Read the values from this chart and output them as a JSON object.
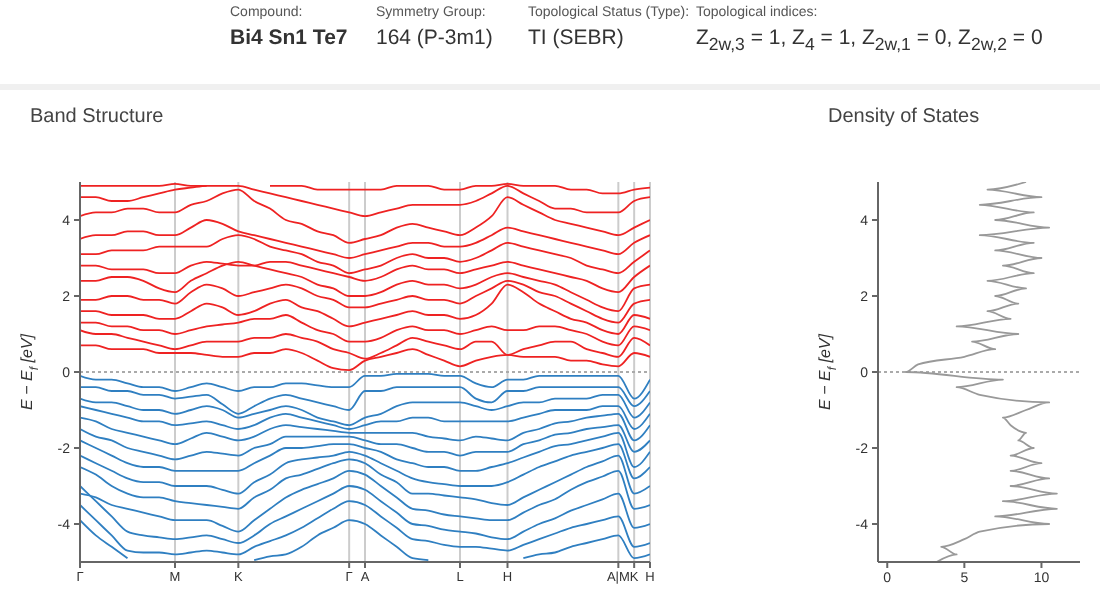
{
  "chart_data": [
    {
      "type": "other",
      "annotations": [
        "Compound:",
        "Bi4 Sn1 Te7",
        "Symmetry Group:",
        "164 (P-3m1)",
        "Topological Status (Type):",
        "TI (SEBR)",
        "Topological indices:",
        "Z$_{2w,3}$ = 1, Z$_{4}$ = 1, Z$_{2w,1}$ = 0, Z$_{2w,2}$ = 0"
      ]
    },
    {
      "type": "line",
      "title": "Band Structure",
      "ylabel": "E − E$_{f}$ [eV]",
      "ylim": [
        -5,
        5
      ],
      "yticks": [
        -4,
        -2,
        0,
        2,
        4
      ],
      "grid": "x",
      "ref_lines": [
        {
          "axis": "y",
          "value": 0,
          "color": "#aaaaaa",
          "line_style": "dotted"
        }
      ],
      "categories": [
        "Γ",
        null,
        null,
        null,
        null,
        null,
        "M",
        null,
        null,
        null,
        "K",
        null,
        null,
        null,
        null,
        null,
        null,
        "Γ",
        "A",
        null,
        null,
        null,
        null,
        null,
        "L",
        null,
        null,
        "H",
        null,
        null,
        null,
        null,
        null,
        null,
        "A|M",
        "K",
        "H"
      ],
      "series": [
        {
          "color": "#ee2222",
          "values": [
            0.7,
            0.7,
            0.6,
            0.6,
            0.6,
            0.5,
            0.5,
            0.5,
            0.45,
            0.4,
            0.4,
            0.5,
            0.5,
            0.6,
            0.5,
            0.3,
            0.1,
            0.05,
            0.3,
            0.4,
            0.5,
            0.6,
            0.45,
            0.3,
            0.15,
            0.3,
            0.4,
            0.45,
            0.4,
            0.4,
            0.4,
            0.3,
            0.3,
            0.2,
            0.15,
            0.5,
            0.4
          ]
        },
        {
          "color": "#ee2222",
          "values": [
            1.1,
            1.0,
            1.0,
            0.9,
            0.8,
            0.7,
            0.6,
            0.7,
            0.8,
            0.8,
            0.8,
            0.9,
            0.9,
            1.0,
            0.9,
            0.8,
            0.6,
            0.5,
            0.35,
            0.5,
            0.7,
            0.9,
            0.8,
            0.7,
            0.6,
            0.8,
            0.8,
            0.45,
            0.6,
            0.7,
            0.8,
            0.8,
            0.6,
            0.5,
            0.4,
            0.9,
            0.7
          ]
        },
        {
          "color": "#ee2222",
          "values": [
            1.3,
            1.3,
            1.2,
            1.2,
            1.1,
            1.1,
            1.0,
            1.1,
            1.2,
            1.25,
            1.3,
            1.4,
            1.4,
            1.5,
            1.3,
            1.1,
            1.0,
            0.8,
            0.8,
            0.9,
            1.1,
            1.2,
            1.1,
            1.1,
            1.0,
            1.1,
            1.2,
            1.1,
            1.1,
            1.2,
            1.2,
            1.1,
            1.0,
            0.8,
            0.7,
            1.2,
            1.1
          ]
        },
        {
          "color": "#ee2222",
          "values": [
            1.6,
            1.6,
            1.5,
            1.5,
            1.5,
            1.4,
            1.4,
            1.6,
            1.8,
            1.7,
            1.5,
            1.6,
            1.8,
            1.9,
            1.7,
            1.6,
            1.4,
            1.2,
            1.3,
            1.4,
            1.5,
            1.6,
            1.5,
            1.5,
            1.4,
            1.5,
            1.8,
            2.3,
            2.1,
            1.8,
            1.6,
            1.4,
            1.3,
            1.1,
            1.0,
            1.5,
            1.4
          ]
        },
        {
          "color": "#ee2222",
          "values": [
            1.9,
            1.9,
            2.0,
            2.0,
            1.9,
            1.9,
            1.8,
            2.1,
            2.3,
            2.2,
            2.0,
            2.1,
            2.2,
            2.3,
            2.2,
            2.0,
            1.9,
            1.7,
            1.7,
            1.8,
            1.9,
            2.0,
            1.9,
            1.9,
            1.8,
            2.0,
            2.2,
            2.4,
            2.3,
            2.1,
            2.0,
            1.8,
            1.6,
            1.4,
            1.3,
            1.8,
            1.9
          ]
        },
        {
          "color": "#ee2222",
          "values": [
            2.4,
            2.4,
            2.5,
            2.5,
            2.4,
            2.2,
            2.1,
            2.4,
            2.6,
            2.8,
            2.9,
            2.8,
            2.7,
            2.6,
            2.5,
            2.3,
            2.2,
            2.0,
            2.0,
            2.1,
            2.3,
            2.4,
            2.3,
            2.3,
            2.2,
            2.3,
            2.5,
            2.6,
            2.5,
            2.4,
            2.3,
            2.1,
            1.9,
            1.7,
            1.6,
            2.2,
            2.3
          ]
        },
        {
          "color": "#ee2222",
          "values": [
            2.8,
            2.8,
            2.7,
            2.7,
            2.7,
            2.6,
            2.6,
            2.8,
            2.9,
            2.85,
            2.8,
            2.8,
            2.9,
            2.9,
            2.8,
            2.7,
            2.6,
            2.5,
            2.4,
            2.5,
            2.7,
            2.8,
            2.7,
            2.7,
            2.6,
            2.7,
            2.8,
            2.9,
            2.8,
            2.7,
            2.6,
            2.5,
            2.4,
            2.2,
            2.1,
            2.5,
            2.8
          ]
        },
        {
          "color": "#ee2222",
          "values": [
            3.1,
            3.1,
            3.2,
            3.2,
            3.2,
            3.3,
            3.3,
            3.3,
            3.3,
            3.5,
            3.6,
            3.5,
            3.3,
            3.2,
            3.1,
            2.9,
            2.8,
            2.6,
            2.7,
            2.8,
            3.0,
            3.1,
            3.0,
            3.0,
            2.9,
            3.0,
            3.2,
            3.4,
            3.3,
            3.2,
            3.1,
            3.0,
            2.8,
            2.7,
            2.6,
            2.9,
            3.2
          ]
        },
        {
          "color": "#ee2222",
          "values": [
            3.5,
            3.6,
            3.6,
            3.7,
            3.7,
            3.6,
            3.6,
            3.8,
            4.0,
            3.9,
            3.7,
            3.6,
            3.5,
            3.4,
            3.3,
            3.2,
            3.1,
            3.0,
            3.1,
            3.2,
            3.3,
            3.4,
            3.4,
            3.3,
            3.3,
            3.4,
            3.6,
            3.8,
            3.7,
            3.6,
            3.5,
            3.4,
            3.3,
            3.2,
            3.1,
            3.4,
            3.6
          ]
        },
        {
          "color": "#ee2222",
          "values": [
            4.1,
            4.2,
            4.2,
            4.3,
            4.3,
            4.2,
            4.2,
            4.4,
            4.5,
            4.7,
            4.8,
            4.5,
            4.3,
            4.0,
            3.9,
            3.7,
            3.6,
            3.4,
            3.5,
            3.6,
            3.8,
            3.9,
            3.8,
            3.7,
            3.6,
            3.8,
            4.1,
            4.6,
            4.4,
            4.2,
            4.0,
            3.9,
            3.8,
            3.7,
            3.6,
            3.8,
            4.0
          ]
        },
        {
          "color": "#ee2222",
          "values": [
            4.6,
            4.6,
            4.5,
            4.5,
            4.6,
            4.7,
            4.8,
            4.85,
            4.9,
            4.9,
            4.9,
            4.8,
            4.7,
            4.6,
            4.5,
            4.4,
            4.3,
            4.2,
            4.1,
            4.2,
            4.3,
            4.4,
            4.4,
            4.4,
            4.4,
            4.5,
            4.7,
            4.9,
            4.7,
            4.5,
            4.3,
            4.3,
            4.2,
            4.2,
            4.2,
            4.5,
            4.6
          ]
        },
        {
          "color": "#ee2222",
          "values": [
            4.9,
            4.9,
            4.9,
            4.9,
            4.9,
            4.9,
            4.95,
            4.9,
            4.9,
            null,
            null,
            null,
            4.9,
            4.9,
            4.9,
            4.8,
            4.8,
            4.8,
            4.8,
            4.8,
            4.9,
            4.9,
            4.9,
            4.8,
            4.8,
            4.9,
            4.9,
            4.95,
            4.9,
            4.9,
            4.9,
            4.8,
            4.8,
            4.7,
            4.7,
            4.8,
            4.85
          ]
        },
        {
          "color": "#2f7fc1",
          "values": [
            -0.1,
            -0.2,
            -0.2,
            -0.3,
            -0.4,
            -0.4,
            -0.5,
            -0.4,
            -0.3,
            -0.4,
            -0.5,
            -0.4,
            -0.4,
            -0.3,
            -0.3,
            -0.35,
            -0.4,
            -0.4,
            -0.1,
            -0.1,
            -0.05,
            -0.05,
            -0.05,
            -0.1,
            -0.1,
            -0.3,
            -0.4,
            -0.2,
            -0.2,
            -0.1,
            -0.1,
            -0.1,
            -0.1,
            -0.1,
            -0.1,
            -0.7,
            -0.2
          ]
        },
        {
          "color": "#2f7fc1",
          "values": [
            -0.4,
            -0.4,
            -0.5,
            -0.5,
            -0.6,
            -0.6,
            -0.7,
            -0.65,
            -0.6,
            -0.85,
            -1.1,
            -0.9,
            -0.7,
            -0.6,
            -0.7,
            -0.8,
            -0.9,
            -1.0,
            -0.5,
            -0.5,
            -0.4,
            -0.4,
            -0.4,
            -0.4,
            -0.4,
            -0.7,
            -0.8,
            -0.5,
            -0.5,
            -0.4,
            -0.4,
            -0.4,
            -0.4,
            -0.4,
            -0.4,
            -0.9,
            -0.5
          ]
        },
        {
          "color": "#2f7fc1",
          "values": [
            -0.7,
            -0.8,
            -0.8,
            -0.9,
            -1.0,
            -1.0,
            -1.1,
            -1.0,
            -0.9,
            -1.0,
            -1.2,
            -1.1,
            -1.0,
            -0.9,
            -1.0,
            -1.2,
            -1.3,
            -1.4,
            -1.2,
            -1.1,
            -0.9,
            -0.8,
            -0.8,
            -0.8,
            -0.8,
            -0.9,
            -1.0,
            -0.9,
            -0.8,
            -0.8,
            -0.7,
            -0.7,
            -0.7,
            -0.6,
            -0.6,
            -1.2,
            -0.8
          ]
        },
        {
          "color": "#2f7fc1",
          "values": [
            -0.9,
            -1.0,
            -1.1,
            -1.2,
            -1.3,
            -1.3,
            -1.4,
            -1.35,
            -1.3,
            -1.4,
            -1.5,
            -1.4,
            -1.2,
            -1.1,
            -1.2,
            -1.3,
            -1.4,
            -1.5,
            -1.4,
            -1.3,
            -1.3,
            -1.2,
            -1.2,
            -1.3,
            -1.3,
            -1.3,
            -1.3,
            -1.3,
            -1.2,
            -1.1,
            -1.0,
            -1.0,
            -1.0,
            -0.9,
            -0.9,
            -1.5,
            -1.1
          ]
        },
        {
          "color": "#2f7fc1",
          "values": [
            -1.2,
            -1.3,
            -1.5,
            -1.6,
            -1.7,
            -1.8,
            -1.9,
            -1.75,
            -1.6,
            -1.7,
            -1.8,
            -1.7,
            -1.5,
            -1.4,
            -1.45,
            -1.5,
            -1.55,
            -1.6,
            -1.6,
            -1.6,
            -1.6,
            -1.6,
            -1.7,
            -1.75,
            -1.8,
            -1.7,
            -1.75,
            -1.8,
            -1.6,
            -1.5,
            -1.35,
            -1.3,
            -1.2,
            -1.15,
            -1.1,
            -1.8,
            -1.4
          ]
        },
        {
          "color": "#2f7fc1",
          "values": [
            -1.5,
            -1.7,
            -1.8,
            -2.0,
            -2.1,
            -2.2,
            -2.3,
            -2.2,
            -2.1,
            -2.15,
            -2.2,
            -2.0,
            -1.9,
            -1.7,
            -1.7,
            -1.7,
            -1.7,
            -1.7,
            -1.8,
            -1.9,
            -1.9,
            -2.0,
            -2.1,
            -2.1,
            -2.2,
            -2.1,
            -2.1,
            -2.1,
            -1.9,
            -1.8,
            -1.65,
            -1.6,
            -1.5,
            -1.45,
            -1.4,
            -2.1,
            -1.8
          ]
        },
        {
          "color": "#2f7fc1",
          "values": [
            -1.8,
            -2.0,
            -2.2,
            -2.4,
            -2.5,
            -2.5,
            -2.6,
            -2.6,
            -2.6,
            -2.6,
            -2.6,
            -2.4,
            -2.2,
            -2.0,
            -2.0,
            -1.95,
            -1.9,
            -1.9,
            -2.0,
            -2.1,
            -2.3,
            -2.4,
            -2.5,
            -2.5,
            -2.6,
            -2.6,
            -2.5,
            -2.4,
            -2.25,
            -2.1,
            -1.95,
            -1.9,
            -1.8,
            -1.7,
            -1.6,
            -2.5,
            -2.1
          ]
        },
        {
          "color": "#2f7fc1",
          "values": [
            -2.2,
            -2.4,
            -2.6,
            -2.8,
            -2.9,
            -2.9,
            -3.0,
            -3.0,
            -3.0,
            -3.1,
            -3.2,
            -2.9,
            -2.7,
            -2.4,
            -2.3,
            -2.25,
            -2.2,
            -2.1,
            -2.2,
            -2.4,
            -2.6,
            -2.8,
            -2.9,
            -2.95,
            -3.0,
            -3.0,
            -3.0,
            -2.9,
            -2.7,
            -2.5,
            -2.35,
            -2.2,
            -2.1,
            -2.0,
            -1.9,
            -2.8,
            -2.5
          ]
        },
        {
          "color": "#2f7fc1",
          "values": [
            -2.5,
            -2.7,
            -3.0,
            -3.2,
            -3.3,
            -3.3,
            -3.4,
            -3.45,
            -3.5,
            -3.55,
            -3.6,
            -3.3,
            -3.1,
            -2.8,
            -2.7,
            -2.55,
            -2.4,
            -2.3,
            -2.4,
            -2.7,
            -2.9,
            -3.2,
            -3.2,
            -3.25,
            -3.3,
            -3.35,
            -3.45,
            -3.5,
            -3.3,
            -3.1,
            -2.9,
            -2.7,
            -2.5,
            -2.35,
            -2.2,
            -3.2,
            -3.0
          ]
        },
        {
          "color": "#2f7fc1",
          "values": [
            -3.2,
            -3.3,
            -3.5,
            -3.6,
            -3.7,
            -3.8,
            -3.9,
            -3.9,
            -3.9,
            -4.05,
            -4.2,
            -3.9,
            -3.6,
            -3.3,
            -3.1,
            -2.95,
            -2.8,
            -2.6,
            -2.7,
            -3.0,
            -3.3,
            -3.6,
            -3.65,
            -3.75,
            -3.8,
            -3.85,
            -3.9,
            -3.9,
            -3.7,
            -3.5,
            -3.35,
            -3.1,
            -2.9,
            -2.75,
            -2.6,
            -3.6,
            -3.5
          ]
        },
        {
          "color": "#2f7fc1",
          "values": [
            -3.0,
            -3.4,
            -3.8,
            -4.2,
            -4.3,
            -4.35,
            -4.4,
            -4.35,
            -4.3,
            -4.4,
            -4.5,
            -4.3,
            -4.0,
            -3.8,
            -3.6,
            -3.4,
            -3.2,
            -3.0,
            -3.1,
            -3.4,
            -3.7,
            -4.0,
            -4.05,
            -4.15,
            -4.2,
            -4.25,
            -4.35,
            -4.4,
            -4.2,
            -4.0,
            -3.85,
            -3.65,
            -3.5,
            -3.35,
            -3.2,
            -4.1,
            -4.0
          ]
        },
        {
          "color": "#2f7fc1",
          "values": [
            -3.5,
            -3.9,
            -4.3,
            -4.7,
            -4.75,
            -4.75,
            -4.8,
            -4.75,
            -4.7,
            -4.75,
            -4.8,
            -4.6,
            -4.45,
            -4.3,
            -4.1,
            -3.85,
            -3.6,
            -3.4,
            -3.5,
            -3.8,
            -4.1,
            -4.4,
            -4.45,
            -4.55,
            -4.6,
            -4.6,
            -4.65,
            -4.7,
            -4.55,
            -4.4,
            -4.25,
            -4.1,
            -4.0,
            -3.9,
            -3.8,
            -4.6,
            -4.5
          ]
        },
        {
          "color": "#2f7fc1",
          "values": [
            -3.9,
            -4.3,
            -4.6,
            -4.9,
            null,
            null,
            null,
            null,
            null,
            null,
            null,
            -4.95,
            -4.85,
            -4.8,
            -4.6,
            -4.3,
            -4.1,
            -3.9,
            -4.0,
            -4.3,
            -4.6,
            -4.9,
            -4.95,
            null,
            null,
            null,
            null,
            null,
            -4.9,
            -4.8,
            -4.75,
            -4.6,
            -4.5,
            -4.4,
            -4.3,
            -4.9,
            -4.8
          ]
        }
      ]
    },
    {
      "type": "line",
      "title": "Density of States",
      "ylabel": "E − E$_{f}$ [eV]",
      "xlim": [
        -0.6,
        12.5
      ],
      "xticks": [
        0,
        5,
        10
      ],
      "ylim": [
        -5,
        5
      ],
      "yticks": [
        -4,
        -2,
        0,
        2,
        4
      ],
      "ref_lines": [
        {
          "axis": "y",
          "value": 0,
          "color": "#aaaaaa",
          "line_style": "dotted"
        }
      ],
      "series": [
        {
          "color": "#999999",
          "x": [
            3.2,
            4.5,
            3.5,
            5.0,
            6.0,
            10.5,
            7.0,
            11.0,
            7.5,
            11.0,
            8.0,
            10.5,
            8.0,
            10.0,
            8.0,
            9.5,
            8.5,
            9.0,
            8.0,
            7.5,
            9.0,
            10.5,
            6.0,
            4.5,
            7.5,
            1.2,
            2.0,
            5.0,
            7.0,
            5.5,
            8.5,
            4.5,
            8.0,
            6.5,
            8.5,
            7.0,
            9.0,
            6.5,
            9.5,
            7.5,
            10.0,
            7.0,
            9.5,
            6.0,
            10.5,
            7.0,
            9.5,
            6.0,
            10.0,
            6.5,
            9.0
          ],
          "values": [
            -5,
            -4.8,
            -4.6,
            -4.4,
            -4.2,
            -4.0,
            -3.8,
            -3.6,
            -3.4,
            -3.2,
            -3.0,
            -2.8,
            -2.6,
            -2.4,
            -2.2,
            -2.0,
            -1.8,
            -1.6,
            -1.4,
            -1.2,
            -1.0,
            -0.8,
            -0.6,
            -0.4,
            -0.2,
            0,
            0.2,
            0.4,
            0.6,
            0.8,
            1.0,
            1.2,
            1.4,
            1.6,
            1.8,
            2.0,
            2.2,
            2.4,
            2.6,
            2.8,
            3.0,
            3.2,
            3.4,
            3.6,
            3.8,
            4.0,
            4.2,
            4.4,
            4.6,
            4.8,
            5
          ]
        }
      ]
    }
  ]
}
